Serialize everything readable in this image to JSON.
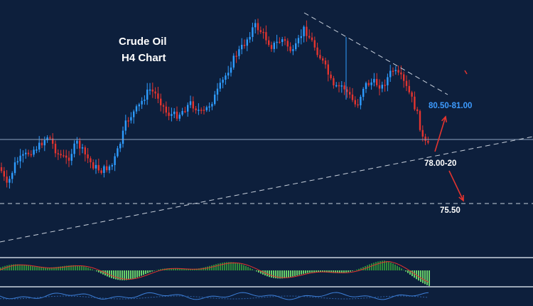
{
  "chart_data": {
    "type": "candlestick",
    "title_line1": "Crude Oil",
    "title_line2": "H4 Chart",
    "annotations": {
      "resistance_target": "80.50-81.00",
      "support_level": "78.00-20",
      "lower_target": "75.50"
    },
    "colors": {
      "background": "#0d1f3c",
      "bull": "#2e9cff",
      "bear": "#e3342f",
      "line": "#c8d0dc",
      "arrow": "#e3342f",
      "histogram_pos": "#2e8b3a",
      "histogram_neg": "#6ad06a",
      "signal": "#e3342f",
      "oscillator": "#3d7fd8"
    },
    "panels": [
      "price",
      "macd_histogram",
      "oscillator"
    ]
  }
}
